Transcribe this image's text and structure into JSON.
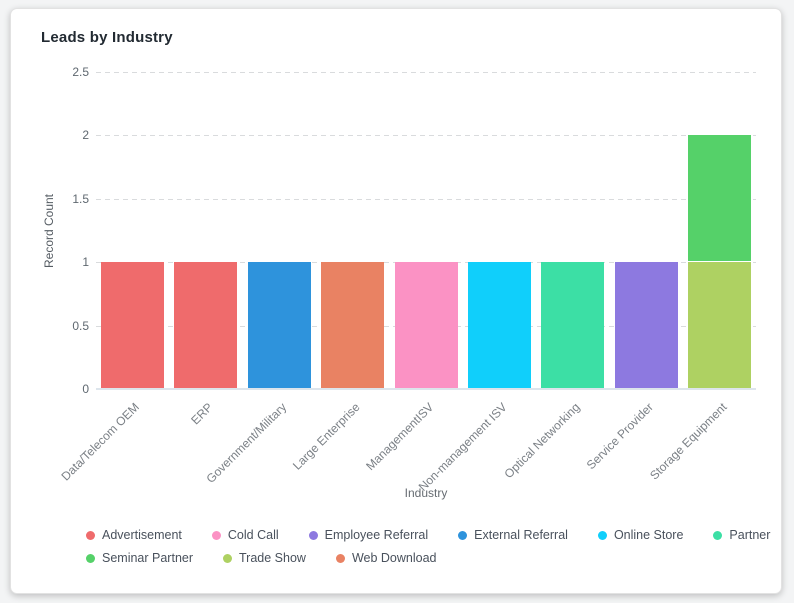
{
  "chart_data": {
    "type": "bar",
    "stacked": true,
    "title": "Leads by Industry",
    "xlabel": "Industry",
    "ylabel": "Record Count",
    "ylim": [
      0,
      2.5
    ],
    "yticks": [
      "0",
      "0.5",
      "1",
      "1.5",
      "2",
      "2.5"
    ],
    "grid": "horizontal-dashed",
    "legend_position": "bottom-left",
    "series": [
      {
        "name": "Advertisement",
        "color": "#ef6b6c"
      },
      {
        "name": "Cold Call",
        "color": "#fb92c4"
      },
      {
        "name": "Employee Referral",
        "color": "#8d79e0"
      },
      {
        "name": "External Referral",
        "color": "#2e93dc"
      },
      {
        "name": "Online Store",
        "color": "#10cffb"
      },
      {
        "name": "Partner",
        "color": "#3cdfa5"
      },
      {
        "name": "Seminar Partner",
        "color": "#55d169"
      },
      {
        "name": "Trade Show",
        "color": "#aed162"
      },
      {
        "name": "Web Download",
        "color": "#e98263"
      }
    ],
    "categories": [
      "Data/Telecom OEM",
      "ERP",
      "Government/Military",
      "Large Enterprise",
      "ManagementISV",
      "Non-management ISV",
      "Optical Networking",
      "Service Provider",
      "Storage Equipment"
    ],
    "bars": [
      {
        "category": "Data/Telecom OEM",
        "segments": [
          {
            "series": "Advertisement",
            "value": 1
          }
        ]
      },
      {
        "category": "ERP",
        "segments": [
          {
            "series": "Advertisement",
            "value": 1
          }
        ]
      },
      {
        "category": "Government/Military",
        "segments": [
          {
            "series": "External Referral",
            "value": 1
          }
        ]
      },
      {
        "category": "Large Enterprise",
        "segments": [
          {
            "series": "Web Download",
            "value": 1
          }
        ]
      },
      {
        "category": "ManagementISV",
        "segments": [
          {
            "series": "Cold Call",
            "value": 1
          }
        ]
      },
      {
        "category": "Non-management ISV",
        "segments": [
          {
            "series": "Online Store",
            "value": 1
          }
        ]
      },
      {
        "category": "Optical Networking",
        "segments": [
          {
            "series": "Partner",
            "value": 1
          }
        ]
      },
      {
        "category": "Service Provider",
        "segments": [
          {
            "series": "Employee Referral",
            "value": 1
          }
        ]
      },
      {
        "category": "Storage Equipment",
        "segments": [
          {
            "series": "Trade Show",
            "value": 1
          },
          {
            "series": "Seminar Partner",
            "value": 1
          }
        ]
      }
    ]
  }
}
